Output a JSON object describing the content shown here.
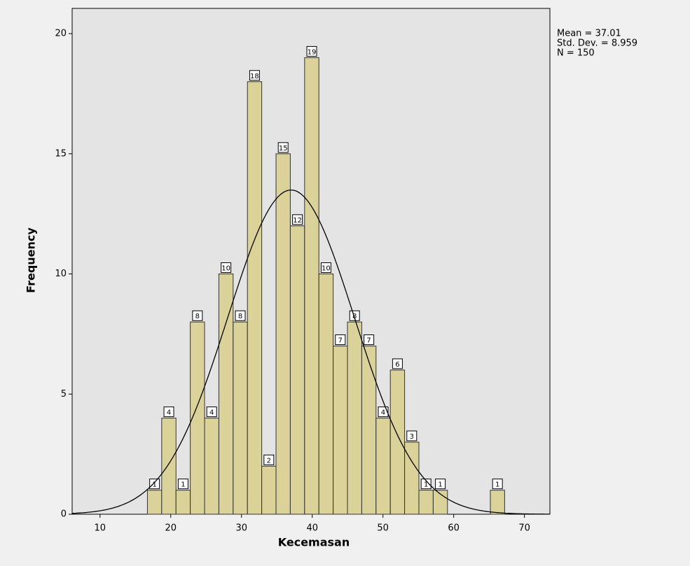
{
  "chart_data": {
    "type": "histogram",
    "x_label": "Kecemasan",
    "y_label": "Frequency",
    "bins": [
      16.7,
      18.72,
      20.74,
      22.76,
      24.78,
      26.8,
      28.82,
      30.84,
      32.86,
      34.88,
      36.9,
      38.92,
      40.94,
      42.96,
      44.98,
      47,
      49.02,
      51.04,
      53.06,
      55.08,
      57.1,
      59.12,
      61.14,
      63.16,
      65.18,
      67.2
    ],
    "values": [
      1,
      4,
      1,
      8,
      4,
      10,
      8,
      18,
      2,
      15,
      12,
      19,
      10,
      7,
      8,
      7,
      4,
      6,
      3,
      1,
      1,
      0,
      0,
      0,
      1
    ],
    "color": "#d9cf8c",
    "xlim": [
      6.06,
      73.6
    ],
    "xticks": [
      10,
      20,
      30,
      40,
      50,
      60,
      70
    ],
    "ylim": [
      0,
      21.05
    ],
    "yticks": [
      0,
      5,
      10,
      15,
      20
    ],
    "stats": {
      "mean": {
        "value": 37.01,
        "label": "Mean = 37.01"
      },
      "sd": {
        "value": 8.959,
        "label": "Std. Dev. = 8.959"
      },
      "n": {
        "value": 150,
        "label": "N = 150"
      }
    }
  }
}
